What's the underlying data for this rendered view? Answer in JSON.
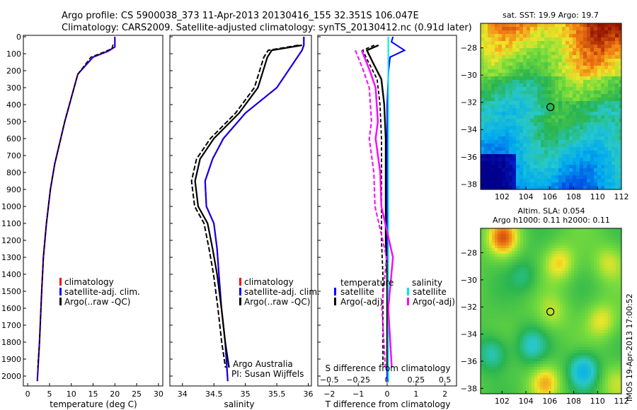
{
  "header": {
    "line1": "Argo profile: CS 5900038_373 11-Apr-2013 20130416_155 32.351S 106.047E",
    "line2": "Climatology: CARS2009. Satellite-adjusted climatology: synTS_20130412.nc (0.91d later)"
  },
  "footer": {
    "credit1": "Argo Australia",
    "credit2": "PI: Susan Wijffels",
    "stamp": "IMOS 19-Apr-2013 17:00:52"
  },
  "colors": {
    "climatology": "#ff0000",
    "satellite": "#0000ff",
    "argo": "#000000",
    "sal_satellite": "#00e5e5",
    "sal_argo": "#ff00ff"
  },
  "chart_data": [
    {
      "id": "temperature",
      "type": "line",
      "xlabel": "temperature (deg C)",
      "xlim": [
        -1,
        31
      ],
      "xticks": [
        0,
        5,
        10,
        15,
        20,
        25,
        30
      ],
      "ylim": [
        2050,
        0
      ],
      "yticks": [
        0,
        100,
        200,
        300,
        400,
        500,
        600,
        700,
        800,
        900,
        1000,
        1100,
        1200,
        1300,
        1400,
        1500,
        1600,
        1700,
        1800,
        1900,
        2000
      ],
      "legend": [
        "climatology",
        "satellite-adj. clim.",
        "Argo(..raw -QC)"
      ],
      "series": [
        {
          "name": "climatology",
          "x": [
            20,
            20,
            18.5,
            15,
            11.5,
            10,
            8.5,
            6.2,
            5.2,
            4.3,
            3.6,
            3.2,
            2.7,
            2.2
          ],
          "y": [
            0,
            60,
            85,
            120,
            220,
            360,
            500,
            750,
            900,
            1100,
            1300,
            1500,
            1800,
            2030
          ]
        },
        {
          "name": "satellite-adj. clim.",
          "x": [
            20,
            20,
            18.3,
            15,
            11.5,
            10,
            8.5,
            6.2,
            5.2,
            4.3,
            3.6,
            3.2,
            2.7,
            2.2
          ],
          "y": [
            0,
            60,
            85,
            120,
            220,
            360,
            500,
            750,
            900,
            1100,
            1300,
            1500,
            1800,
            2030
          ]
        },
        {
          "name": "Argo(..raw -QC)",
          "x": [
            19.6,
            19.3,
            17.5,
            14.5,
            11.5,
            10,
            8.5,
            6.2,
            5.2,
            4.3,
            3.6,
            3.2,
            2.7,
            2.3
          ],
          "y": [
            45,
            70,
            90,
            120,
            220,
            360,
            500,
            750,
            900,
            1100,
            1300,
            1500,
            1800,
            1950
          ]
        }
      ]
    },
    {
      "id": "salinity",
      "type": "line",
      "xlabel": "salinity",
      "xlim": [
        33.8,
        36.05
      ],
      "xticks": [
        34,
        34.5,
        35,
        35.5,
        36
      ],
      "xtick_labels": [
        "34",
        "34.5",
        "35",
        "35.5",
        "36"
      ],
      "ylim": [
        2050,
        0
      ],
      "legend": [
        "climatology",
        "satellite-adj. clim.",
        "Argo(..raw -QC)"
      ],
      "series": [
        {
          "name": "climatology",
          "x": [
            35.93,
            35.93,
            35.9,
            35.5,
            35.0,
            34.65,
            34.48,
            34.36,
            34.38,
            34.5,
            34.55,
            34.58,
            34.62,
            34.68,
            34.72
          ],
          "y": [
            0,
            50,
            80,
            300,
            450,
            600,
            720,
            850,
            1000,
            1100,
            1250,
            1400,
            1600,
            1800,
            2030
          ]
        },
        {
          "name": "satellite-adj. clim.",
          "x": [
            35.93,
            35.93,
            35.9,
            35.5,
            35.0,
            34.65,
            34.48,
            34.36,
            34.38,
            34.5,
            34.55,
            34.58,
            34.62,
            34.68,
            34.72
          ],
          "y": [
            0,
            50,
            80,
            300,
            450,
            600,
            720,
            850,
            1000,
            1100,
            1250,
            1400,
            1600,
            1800,
            2030
          ]
        },
        {
          "name": "Argo(..raw -QC)",
          "x": [
            35.9,
            35.42,
            35.35,
            35.2,
            34.9,
            34.5,
            34.28,
            34.2,
            34.25,
            34.4,
            34.48,
            34.55,
            34.62,
            34.68,
            34.74
          ],
          "y": [
            50,
            80,
            120,
            300,
            450,
            600,
            720,
            850,
            1000,
            1100,
            1250,
            1400,
            1600,
            1800,
            1950
          ]
        }
      ]
    },
    {
      "id": "difference",
      "type": "line",
      "xlabel": "T difference from climatology",
      "xlabel_top": "S difference from climatology",
      "xlim": [
        -2.4,
        2.4
      ],
      "xticks": [
        -2,
        -1,
        0,
        1,
        2
      ],
      "xticks_top": [
        -0.5,
        -0.25,
        0,
        0.25,
        0.5
      ],
      "xtick_labels_top": [
        "-0.5",
        "-0.25",
        "0",
        "0.25",
        "0.5"
      ],
      "ylim": [
        2050,
        0
      ],
      "legend_titles": [
        "temperature",
        "salinity"
      ],
      "legend": [
        "satellite",
        "Argo(-adj)",
        "satellite",
        "Argo(-adj)"
      ],
      "series": [
        {
          "name": "temperature satellite",
          "x": [
            0.2,
            0.15,
            0.6,
            0.1,
            0.05,
            0,
            0,
            0,
            0,
            0,
            0,
            0
          ],
          "y": [
            0,
            30,
            80,
            120,
            200,
            400,
            600,
            800,
            1200,
            1600,
            1800,
            2030
          ]
        },
        {
          "name": "temperature Argo(-adj)",
          "x": [
            -0.3,
            -0.7,
            -0.5,
            -0.2,
            -0.1,
            -0.05,
            -0.05,
            -0.05,
            -0.05,
            0,
            0,
            0
          ],
          "y": [
            50,
            80,
            150,
            250,
            400,
            600,
            800,
            1000,
            1200,
            1400,
            1700,
            1950
          ]
        },
        {
          "name": "salinity satellite",
          "x": [
            0.01,
            0.01,
            0.01,
            0.01,
            0.01,
            0.01,
            0.01,
            0.01
          ],
          "y": [
            0,
            100,
            300,
            600,
            900,
            1200,
            1600,
            2030
          ]
        },
        {
          "name": "salinity Argo(-adj)",
          "x": [
            -0.22,
            -0.15,
            -0.1,
            -0.08,
            -0.1,
            -0.06,
            -0.05,
            0.05,
            0.01,
            0.04
          ],
          "y": [
            80,
            200,
            300,
            500,
            600,
            800,
            1000,
            1300,
            1600,
            1950
          ]
        }
      ]
    },
    {
      "id": "sst_map",
      "type": "heatmap",
      "title": "sat. SST: 19.9 Argo: 19.7",
      "xticks": [
        102,
        104,
        106,
        108,
        110,
        112
      ],
      "yticks": [
        -28,
        -30,
        -32,
        -34,
        -36,
        -38
      ],
      "xlim": [
        100.2,
        112
      ],
      "ylim": [
        -38.4,
        -26.2
      ],
      "marker": {
        "lon": 106.047,
        "lat": -32.351
      }
    },
    {
      "id": "sla_map",
      "type": "heatmap",
      "title": "Altim. SLA: 0.054",
      "subtitle": "Argo h1000: 0.11 h2000: 0.11",
      "xticks": [
        102,
        104,
        106,
        108,
        110,
        112
      ],
      "yticks": [
        -28,
        -30,
        -32,
        -34,
        -36,
        -38
      ],
      "xlim": [
        100.2,
        112
      ],
      "ylim": [
        -38.4,
        -26.2
      ],
      "marker": {
        "lon": 106.047,
        "lat": -32.351
      }
    }
  ]
}
